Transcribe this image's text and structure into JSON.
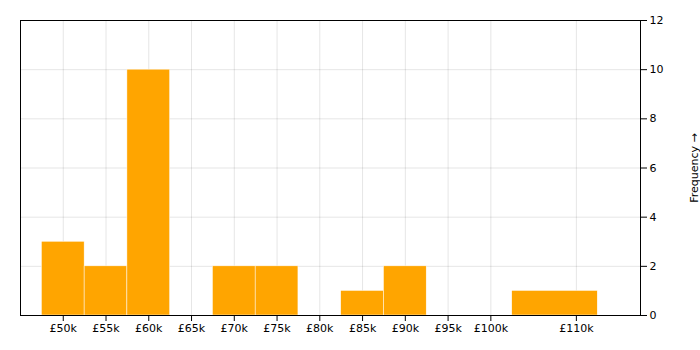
{
  "chart_data": {
    "type": "histogram",
    "bins": [
      47500,
      52500,
      57500,
      62500,
      67500,
      72500,
      77500,
      82500,
      87500,
      92500,
      97500,
      102500,
      112500
    ],
    "values": [
      3,
      2,
      10,
      0,
      2,
      2,
      0,
      1,
      2,
      0,
      0,
      1
    ],
    "color": "#FFA500",
    "y_label": "Frequency",
    "xlim": [
      45000,
      117500
    ],
    "xticks": [
      {
        "value": 50000,
        "label": "£50k"
      },
      {
        "value": 55000,
        "label": "£55k"
      },
      {
        "value": 60000,
        "label": "£60k"
      },
      {
        "value": 65000,
        "label": "£65k"
      },
      {
        "value": 70000,
        "label": "£70k"
      },
      {
        "value": 75000,
        "label": "£75k"
      },
      {
        "value": 80000,
        "label": "£80k"
      },
      {
        "value": 85000,
        "label": "£85k"
      },
      {
        "value": 90000,
        "label": "£90k"
      },
      {
        "value": 95000,
        "label": "£95k"
      },
      {
        "value": 100000,
        "label": "£100k"
      },
      {
        "value": 110000,
        "label": "£110k"
      }
    ],
    "ylim": [
      0,
      12
    ],
    "yticks": [
      0,
      2,
      4,
      6,
      8,
      10,
      12
    ],
    "grid": true
  }
}
